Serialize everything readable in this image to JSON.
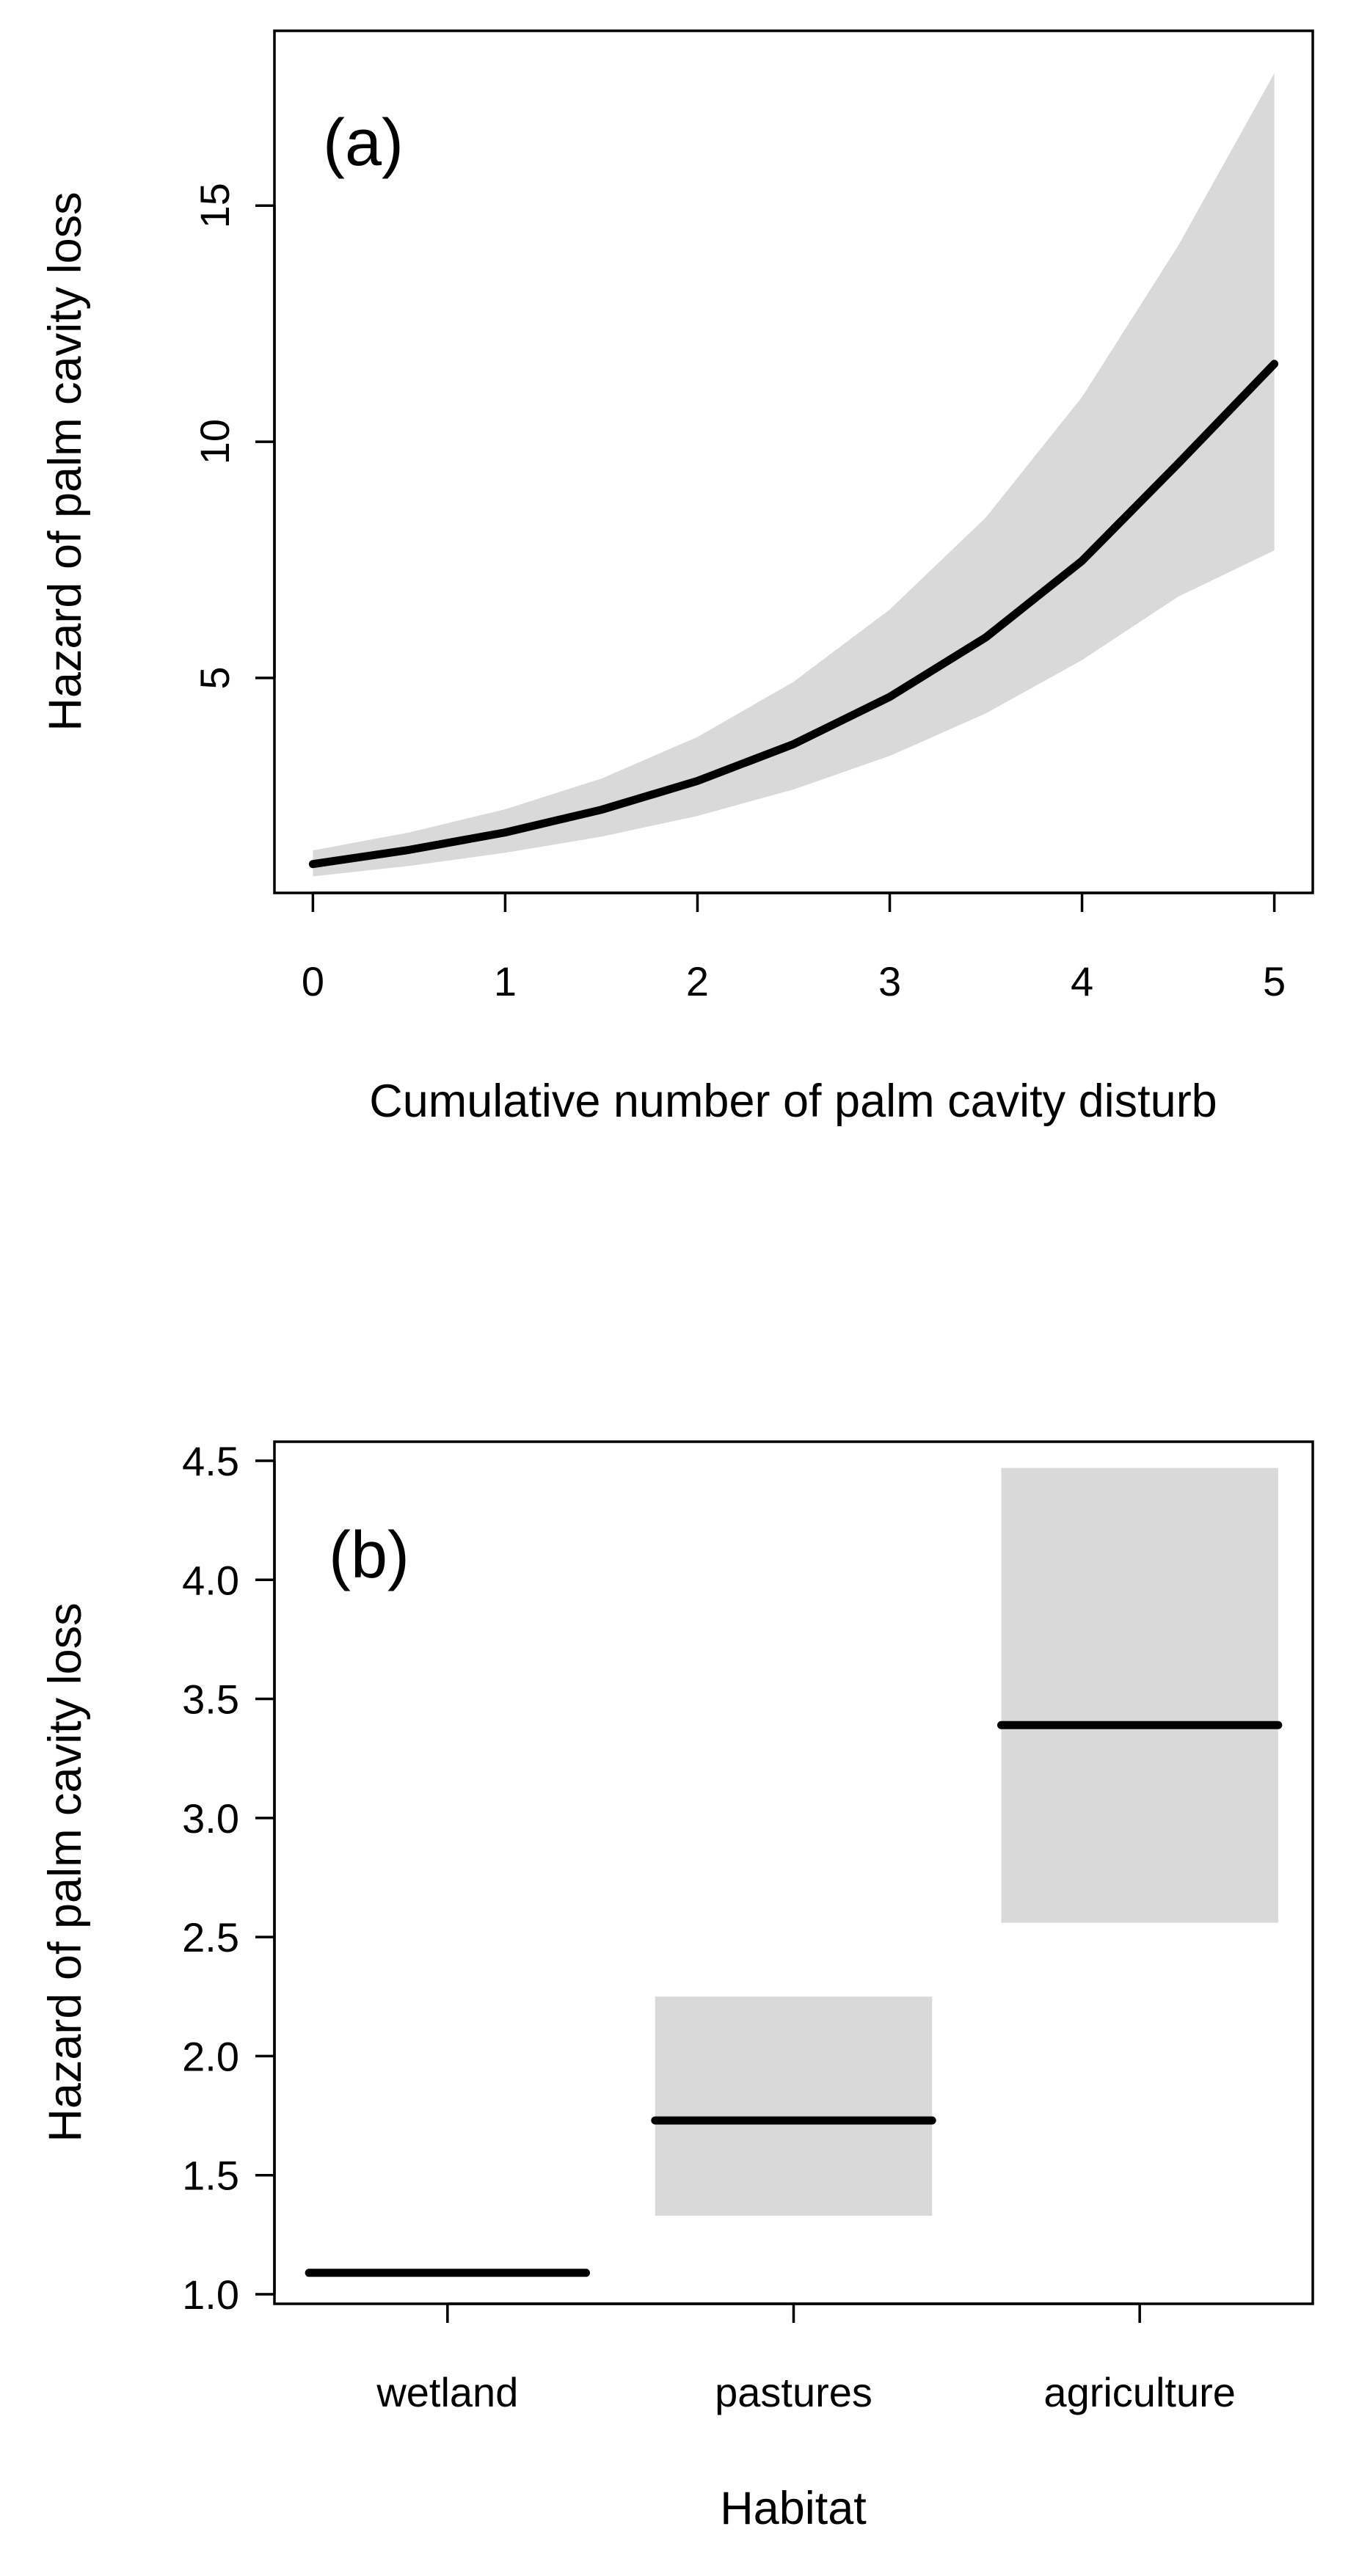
{
  "chart_data": [
    {
      "type": "line",
      "panel_label": "(a)",
      "xlabel": "Cumulative number of palm cavity disturb",
      "ylabel": "Hazard of palm cavity loss",
      "x_ticks": [
        "0",
        "1",
        "2",
        "3",
        "4",
        "5"
      ],
      "y_ticks": [
        "5",
        "10",
        "15"
      ],
      "xlim": [
        -0.2,
        5.2
      ],
      "ylim": [
        0.45,
        18.7
      ],
      "grid": false,
      "series": [
        {
          "x": [
            0,
            0.5,
            1,
            1.5,
            2,
            2.5,
            3,
            3.5,
            4,
            4.5,
            5
          ],
          "y": [
            1.06,
            1.36,
            1.73,
            2.21,
            2.82,
            3.6,
            4.6,
            5.86,
            7.48,
            9.54,
            11.65
          ],
          "lower": [
            0.8,
            1.02,
            1.3,
            1.64,
            2.08,
            2.64,
            3.35,
            4.25,
            5.38,
            6.72,
            7.7
          ],
          "upper": [
            1.35,
            1.73,
            2.22,
            2.87,
            3.75,
            4.92,
            6.45,
            8.4,
            10.95,
            14.15,
            17.8
          ]
        }
      ],
      "band_color": "#d9d9d9",
      "line_color": "#000000"
    },
    {
      "type": "bar",
      "panel_label": "(b)",
      "xlabel": "Habitat",
      "ylabel": "Hazard of palm cavity loss",
      "categories": [
        "wetland",
        "pastures",
        "agriculture"
      ],
      "y_ticks": [
        "1.0",
        "1.5",
        "2.0",
        "2.5",
        "3.0",
        "3.5",
        "4.0",
        "4.5"
      ],
      "ylim": [
        0.96,
        4.58
      ],
      "grid": false,
      "estimates": [
        1.09,
        1.73,
        3.39
      ],
      "lower": [
        1.09,
        1.33,
        2.56
      ],
      "upper": [
        1.09,
        2.25,
        4.47
      ],
      "band_color": "#d9d9d9",
      "line_color": "#000000"
    }
  ]
}
